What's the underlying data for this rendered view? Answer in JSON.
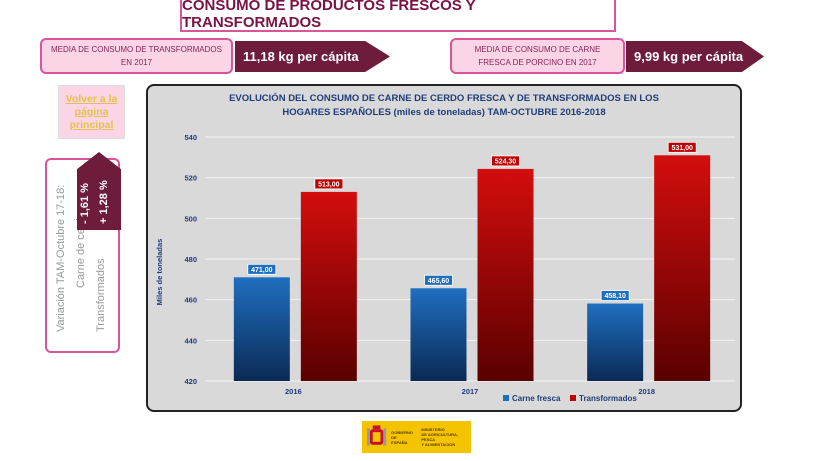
{
  "header": {
    "title": "CONSUMO DE PRODUCTOS FRESCOS Y TRANSFORMADOS"
  },
  "kpis": [
    {
      "label": "MEDIA DE CONSUMO  DE TRANSFORMADOS EN 2017",
      "value": "11,18 kg per cápita"
    },
    {
      "label": "MEDIA DE CONSUMO DE CARNE FRESCA DE PORCINO EN 2017",
      "value": "9,99 kg per cápita"
    }
  ],
  "nav": {
    "back_label": "Volver a la página principal"
  },
  "variation": {
    "title": "Variación TAM-Octubre 17-18:",
    "fresh_label": "Carne de cerdo",
    "processed_label": "Transformados",
    "fresh_value": "- 1,61 %",
    "processed_value": "+ 1,28 %"
  },
  "colors": {
    "fresh": "#1f6fc0",
    "fresh_dark": "#0b2a55",
    "processed": "#d40d0d",
    "processed_dark": "#5a0000",
    "accent": "#6e1c3c",
    "pink": "#d9559a"
  },
  "chart_data": {
    "type": "bar",
    "title": "EVOLUCIÓN DEL CONSUMO DE CARNE DE CERDO FRESCA Y DE TRANSFORMADOS EN LOS HOGARES ESPAÑOLES (miles de toneladas) TAM-OCTUBRE 2016-2018",
    "title_lines": [
      "EVOLUCIÓN DEL CONSUMO DE CARNE DE CERDO FRESCA Y DE TRANSFORMADOS EN LOS",
      "HOGARES ESPAÑOLES (miles de toneladas) TAM-OCTUBRE 2016-2018"
    ],
    "categories": [
      "2016",
      "2017",
      "2018"
    ],
    "series": [
      {
        "name": "Carne fresca",
        "values": [
          471.0,
          465.6,
          458.1
        ],
        "labels": [
          "471,00",
          "465,60",
          "458,10"
        ]
      },
      {
        "name": "Transformados",
        "values": [
          513.0,
          524.3,
          531.0
        ],
        "labels": [
          "513,00",
          "524,30",
          "531,00"
        ]
      }
    ],
    "ylabel": "Miles de toneladas",
    "xlabel": "",
    "ylim": [
      420,
      540
    ],
    "yticks": [
      420,
      440,
      460,
      480,
      500,
      520,
      540
    ],
    "grid": true,
    "legend": "bottom-right"
  },
  "footer": {
    "logo_left": [
      "GOBIERNO",
      "DE ESPAÑA"
    ],
    "logo_right": [
      "MINISTERIO",
      "DE AGRICULTURA, PESCA",
      "Y ALIMENTACIÓN"
    ]
  }
}
